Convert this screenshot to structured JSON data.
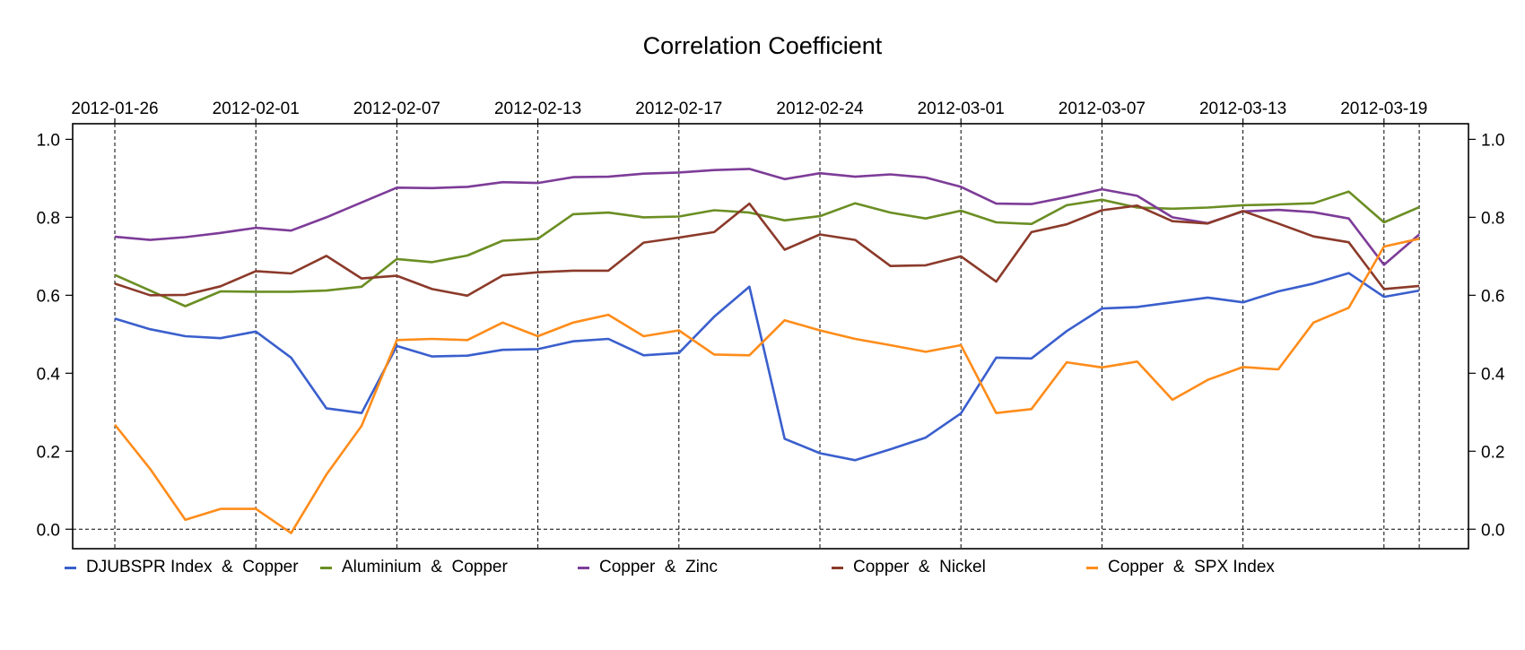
{
  "chart_data": {
    "type": "line",
    "title": "Correlation Coefficient",
    "xlabel": "",
    "ylabel": "",
    "ylim": [
      -0.05,
      1.04
    ],
    "y_ticks": [
      "0.0",
      "0.2",
      "0.4",
      "0.6",
      "0.8",
      "1.0"
    ],
    "y_tick_values": [
      0.0,
      0.2,
      0.4,
      0.6,
      0.8,
      1.0
    ],
    "x_tick_labels": [
      "2012-01-26",
      "2012-02-01",
      "2012-02-07",
      "2012-02-13",
      "2012-02-17",
      "2012-02-24",
      "2012-03-01",
      "2012-03-07",
      "2012-03-13",
      "2012-03-19"
    ],
    "x_tick_positions": [
      0,
      4,
      8,
      12,
      16,
      20,
      24,
      28,
      32,
      36
    ],
    "x_extra_vlines": [
      37
    ],
    "legend_position": "bottom",
    "series": [
      {
        "name": "DJUBSPR Index  &  Copper",
        "color": "#3a5fcd",
        "values": [
          0.54,
          0.513,
          0.495,
          0.49,
          0.507,
          0.44,
          0.31,
          0.298,
          0.47,
          0.443,
          0.445,
          0.46,
          0.462,
          0.482,
          0.488,
          0.446,
          0.452,
          0.545,
          0.622,
          0.232,
          0.195,
          0.177,
          0.205,
          0.235,
          0.297,
          0.44,
          0.438,
          0.508,
          0.566,
          0.57,
          0.582,
          0.594,
          0.582,
          0.61,
          0.63,
          0.657,
          0.596,
          0.612
        ]
      },
      {
        "name": "Aluminium  &  Copper",
        "color": "#6b8e23",
        "values": [
          0.652,
          0.612,
          0.572,
          0.61,
          0.609,
          0.609,
          0.612,
          0.622,
          0.693,
          0.685,
          0.702,
          0.74,
          0.745,
          0.808,
          0.812,
          0.8,
          0.802,
          0.818,
          0.812,
          0.792,
          0.803,
          0.836,
          0.812,
          0.797,
          0.817,
          0.787,
          0.783,
          0.831,
          0.845,
          0.825,
          0.822,
          0.825,
          0.831,
          0.833,
          0.836,
          0.866,
          0.787,
          0.826
        ]
      },
      {
        "name": "Copper  &  Zinc",
        "color": "#7d3c98",
        "values": [
          0.75,
          0.742,
          0.749,
          0.76,
          0.773,
          0.766,
          0.8,
          0.838,
          0.876,
          0.875,
          0.878,
          0.89,
          0.888,
          0.903,
          0.904,
          0.912,
          0.915,
          0.921,
          0.924,
          0.898,
          0.913,
          0.904,
          0.91,
          0.902,
          0.878,
          0.835,
          0.834,
          0.852,
          0.872,
          0.855,
          0.8,
          0.785,
          0.815,
          0.819,
          0.813,
          0.797,
          0.678,
          0.756
        ]
      },
      {
        "name": "Copper  &  Nickel",
        "color": "#8b3a2a",
        "values": [
          0.63,
          0.6,
          0.601,
          0.623,
          0.662,
          0.656,
          0.701,
          0.643,
          0.65,
          0.616,
          0.599,
          0.651,
          0.659,
          0.663,
          0.663,
          0.735,
          0.748,
          0.762,
          0.835,
          0.717,
          0.756,
          0.742,
          0.675,
          0.677,
          0.7,
          0.635,
          0.762,
          0.782,
          0.818,
          0.83,
          0.79,
          0.784,
          0.816,
          0.784,
          0.751,
          0.736,
          0.616,
          0.624
        ]
      },
      {
        "name": "Copper  &  SPX Index",
        "color": "#ff8c1a",
        "values": [
          0.268,
          0.155,
          0.024,
          0.052,
          0.052,
          -0.01,
          0.14,
          0.265,
          0.485,
          0.488,
          0.485,
          0.53,
          0.495,
          0.53,
          0.55,
          0.495,
          0.51,
          0.448,
          0.446,
          0.536,
          0.51,
          0.488,
          0.472,
          0.455,
          0.472,
          0.298,
          0.308,
          0.428,
          0.415,
          0.43,
          0.332,
          0.383,
          0.416,
          0.41,
          0.53,
          0.568,
          0.725,
          0.745
        ]
      }
    ]
  }
}
